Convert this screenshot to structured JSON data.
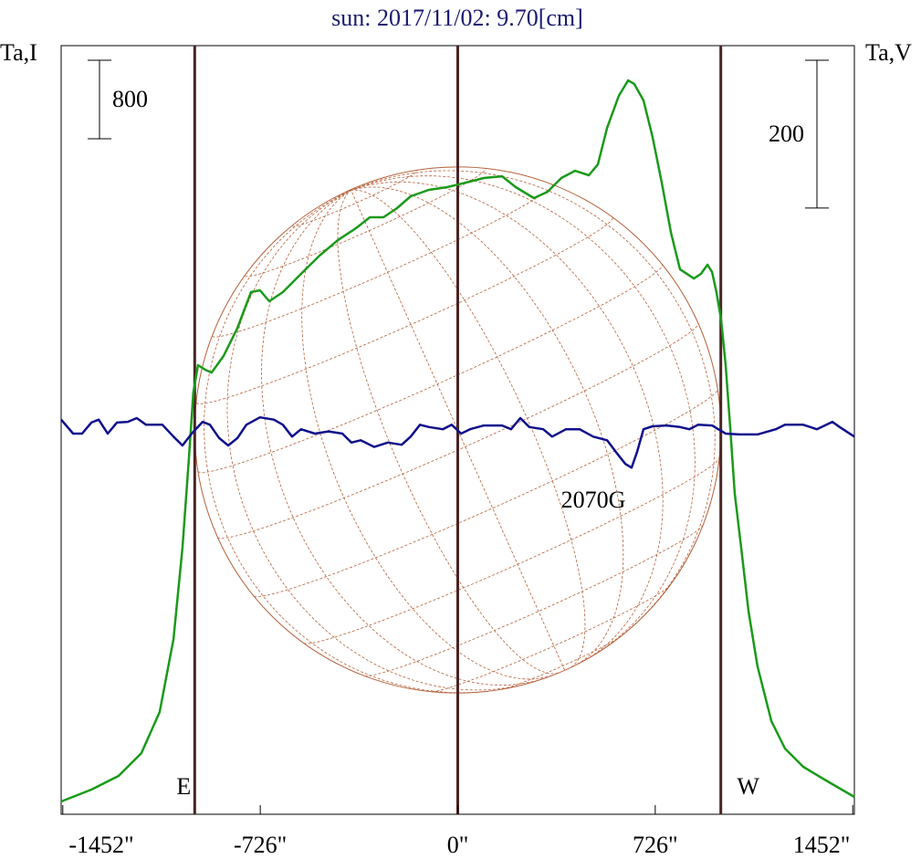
{
  "chart_data": {
    "type": "line",
    "title": "sun: 2017/11/02: 9.70[cm]",
    "ylabel": "Ta,I",
    "y2label": "Ta,V",
    "xlim": [
      -1458,
      1458
    ],
    "xticks": [
      {
        "value": -1452,
        "label": "-1452\""
      },
      {
        "value": -726,
        "label": "-726\""
      },
      {
        "value": 0,
        "label": "0\""
      },
      {
        "value": 726,
        "label": "726\""
      },
      {
        "value": 1452,
        "label": "1452\""
      }
    ],
    "ylim": [
      0,
      7833
    ],
    "y2lim": [
      -520,
      520
    ],
    "scale_bars": [
      {
        "value": 800,
        "axis": "y"
      },
      {
        "value": 200,
        "axis": "y2"
      }
    ],
    "disk_radius": 967,
    "vlines": [
      {
        "value": -967,
        "label": "E"
      },
      {
        "value": 0
      },
      {
        "value": 967,
        "label": "W"
      }
    ],
    "annotation": "2070G",
    "series": [
      {
        "color": "#1a9a1a",
        "x": [
          -1458,
          -1347,
          -1247,
          -1163,
          -1096,
          -1045,
          -1012,
          -988,
          -972,
          -955,
          -928,
          -905,
          -861,
          -811,
          -760,
          -727,
          -693,
          -643,
          -576,
          -508,
          -441,
          -374,
          -323,
          -273,
          -223,
          -173,
          -106,
          -39,
          29,
          96,
          163,
          213,
          280,
          330,
          381,
          431,
          482,
          515,
          549,
          592,
          626,
          649,
          683,
          716,
          750,
          784,
          817,
          868,
          894,
          918,
          935,
          951,
          968,
          985,
          1002,
          1018,
          1042,
          1069,
          1102,
          1153,
          1203,
          1270,
          1354,
          1458
        ],
        "values": [
          130,
          251,
          391,
          623,
          1042,
          1786,
          2716,
          3647,
          4298,
          4577,
          4530,
          4502,
          4670,
          4949,
          5321,
          5340,
          5228,
          5321,
          5507,
          5693,
          5851,
          5972,
          6084,
          6084,
          6177,
          6298,
          6363,
          6391,
          6437,
          6484,
          6502,
          6391,
          6279,
          6344,
          6484,
          6558,
          6512,
          6623,
          6995,
          7321,
          7479,
          7442,
          7274,
          6902,
          6437,
          5926,
          5553,
          5460,
          5507,
          5600,
          5526,
          5321,
          5042,
          4577,
          3926,
          3274,
          2716,
          2065,
          1507,
          949,
          670,
          484,
          344,
          177
        ]
      },
      {
        "color": "#10108c",
        "axis": "y2",
        "x": [
          -1458,
          -1414,
          -1381,
          -1347,
          -1320,
          -1287,
          -1253,
          -1213,
          -1180,
          -1146,
          -1086,
          -1045,
          -1012,
          -978,
          -938,
          -911,
          -877,
          -844,
          -810,
          -777,
          -727,
          -676,
          -643,
          -609,
          -576,
          -525,
          -475,
          -424,
          -391,
          -357,
          -307,
          -257,
          -206,
          -173,
          -139,
          -106,
          -55,
          -22,
          12,
          45,
          96,
          163,
          196,
          230,
          263,
          314,
          347,
          398,
          448,
          498,
          549,
          582,
          616,
          639,
          659,
          683,
          716,
          767,
          817,
          851,
          884,
          935,
          985,
          1035,
          1102,
          1169,
          1203,
          1270,
          1320,
          1377,
          1404,
          1458
        ],
        "values": [
          14,
          -5,
          -5,
          10,
          14,
          -5,
          10,
          11,
          16,
          7,
          7,
          -9,
          -21,
          -5,
          11,
          7,
          -11,
          -21,
          -11,
          7,
          17,
          14,
          7,
          -9,
          1,
          -5,
          -2,
          -5,
          -17,
          -14,
          -23,
          -17,
          -20,
          -9,
          7,
          4,
          1,
          7,
          -5,
          1,
          6,
          6,
          1,
          16,
          4,
          1,
          -9,
          1,
          1,
          -9,
          -14,
          -30,
          -46,
          -51,
          -30,
          1,
          5,
          6,
          4,
          1,
          7,
          6,
          -5,
          -6,
          -6,
          1,
          7,
          7,
          1,
          11,
          4,
          -9
        ]
      }
    ]
  }
}
